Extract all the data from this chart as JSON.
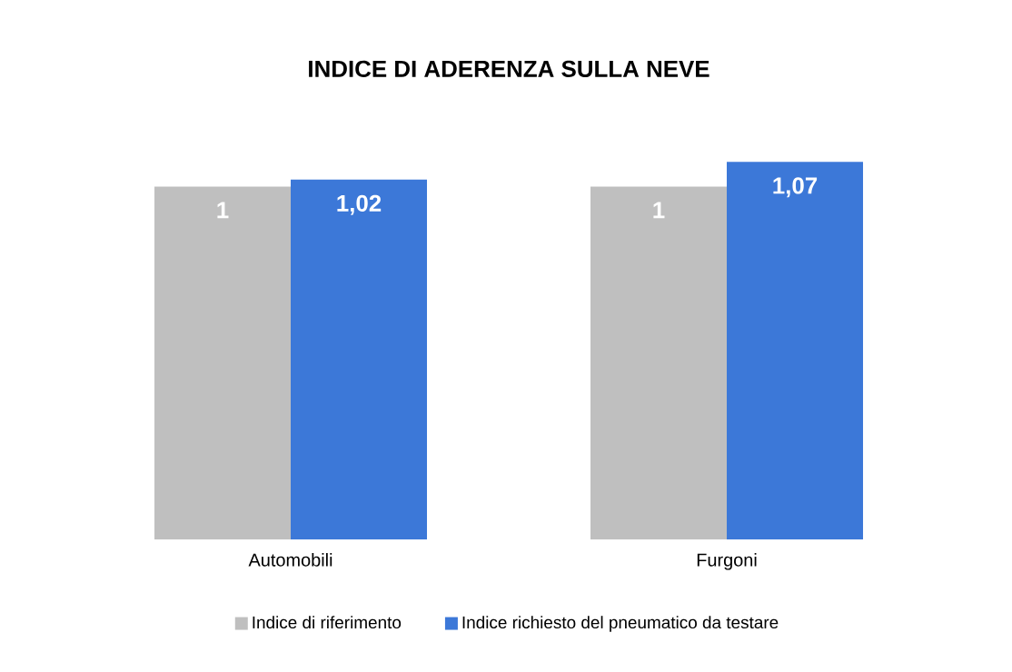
{
  "chart_data": {
    "type": "bar",
    "title": "INDICE DI ADERENZA SULLA NEVE",
    "categories": [
      "Automobili",
      "Furgoni"
    ],
    "series": [
      {
        "name": "Indice di riferimento",
        "color": "#bfbfbf",
        "values": [
          1,
          1
        ],
        "value_labels": [
          "1",
          "1"
        ]
      },
      {
        "name": "Indice richiesto del pneumatico da testare",
        "color": "#3c78d8",
        "values": [
          1.02,
          1.07
        ],
        "value_labels": [
          "1,02",
          "1,07"
        ]
      }
    ],
    "legend": "bottom"
  }
}
